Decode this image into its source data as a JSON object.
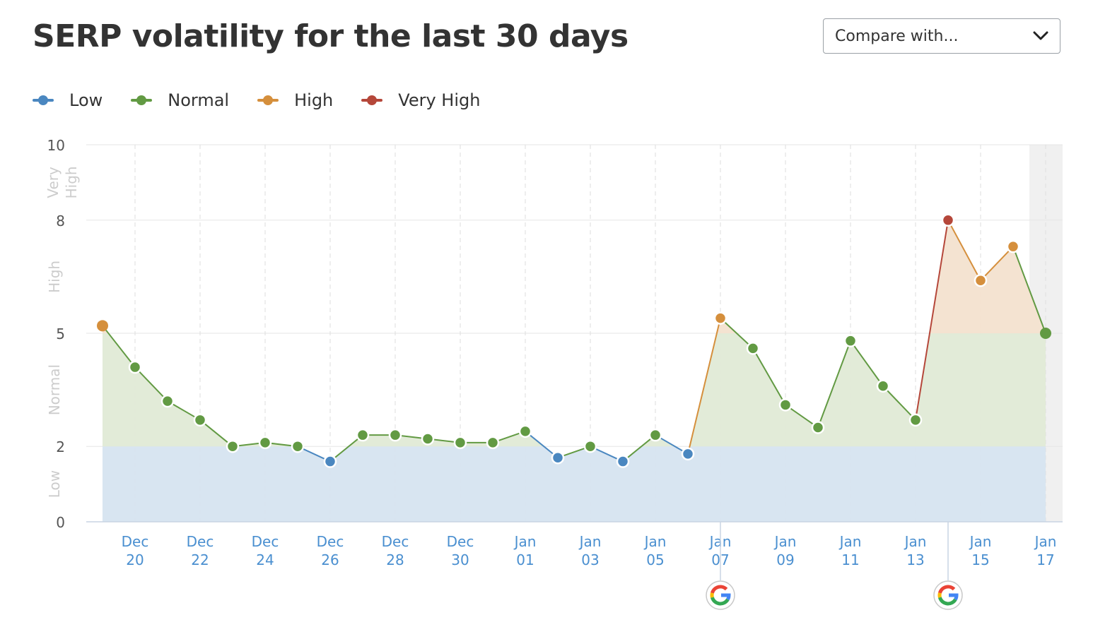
{
  "header": {
    "title": "SERP volatility for the last 30 days",
    "compare_label": "Compare with..."
  },
  "icons": {
    "dropdown": "chevron-down-icon",
    "google_update": "google-icon"
  },
  "colors": {
    "low": "#4a87c0",
    "normal": "#629a43",
    "high": "#d58f3c",
    "very_high": "#b5473a",
    "tick_label": "#4a8fd0"
  },
  "legend": [
    {
      "label": "Low",
      "color": "#4a87c0"
    },
    {
      "label": "Normal",
      "color": "#629a43"
    },
    {
      "label": "High",
      "color": "#d58f3c"
    },
    {
      "label": "Very High",
      "color": "#b5473a"
    }
  ],
  "chart_data": {
    "type": "line",
    "x": [
      "Dec 19",
      "Dec 20",
      "Dec 21",
      "Dec 22",
      "Dec 23",
      "Dec 24",
      "Dec 25",
      "Dec 26",
      "Dec 27",
      "Dec 28",
      "Dec 29",
      "Dec 30",
      "Dec 31",
      "Jan 01",
      "Jan 02",
      "Jan 03",
      "Jan 04",
      "Jan 05",
      "Jan 06",
      "Jan 07",
      "Jan 08",
      "Jan 09",
      "Jan 10",
      "Jan 11",
      "Jan 12",
      "Jan 13",
      "Jan 14",
      "Jan 15",
      "Jan 16",
      "Jan 17"
    ],
    "values": [
      5.2,
      4.1,
      3.2,
      2.7,
      2.0,
      2.1,
      2.0,
      1.6,
      2.3,
      2.3,
      2.2,
      2.1,
      2.1,
      2.4,
      1.7,
      2.0,
      1.6,
      2.3,
      1.8,
      5.4,
      4.6,
      3.1,
      2.5,
      4.8,
      3.6,
      2.7,
      8.0,
      6.4,
      7.3,
      5.0
    ],
    "ylim": [
      0,
      10
    ],
    "yticks": [
      "0",
      "2",
      "5",
      "8",
      "10"
    ],
    "bands": [
      {
        "label": "Low",
        "from": 0,
        "to": 2
      },
      {
        "label": "Normal",
        "from": 2,
        "to": 5
      },
      {
        "label": "High",
        "from": 5,
        "to": 8
      },
      {
        "label": "Very High",
        "from": 8,
        "to": 10
      }
    ],
    "xtick_labels": [
      {
        "date": "Dec 20",
        "month": "Dec",
        "day": "20"
      },
      {
        "date": "Dec 22",
        "month": "Dec",
        "day": "22"
      },
      {
        "date": "Dec 24",
        "month": "Dec",
        "day": "24"
      },
      {
        "date": "Dec 26",
        "month": "Dec",
        "day": "26"
      },
      {
        "date": "Dec 28",
        "month": "Dec",
        "day": "28"
      },
      {
        "date": "Dec 30",
        "month": "Dec",
        "day": "30"
      },
      {
        "date": "Jan 01",
        "month": "Jan",
        "day": "01"
      },
      {
        "date": "Jan 03",
        "month": "Jan",
        "day": "03"
      },
      {
        "date": "Jan 05",
        "month": "Jan",
        "day": "05"
      },
      {
        "date": "Jan 07",
        "month": "Jan",
        "day": "07"
      },
      {
        "date": "Jan 09",
        "month": "Jan",
        "day": "09"
      },
      {
        "date": "Jan 11",
        "month": "Jan",
        "day": "11"
      },
      {
        "date": "Jan 13",
        "month": "Jan",
        "day": "13"
      },
      {
        "date": "Jan 15",
        "month": "Jan",
        "day": "15"
      },
      {
        "date": "Jan 17",
        "month": "Jan",
        "day": "17"
      }
    ],
    "google_updates": [
      "Jan 07",
      "Jan 14"
    ],
    "highlighted_date": "Jan 17",
    "grid": true
  }
}
